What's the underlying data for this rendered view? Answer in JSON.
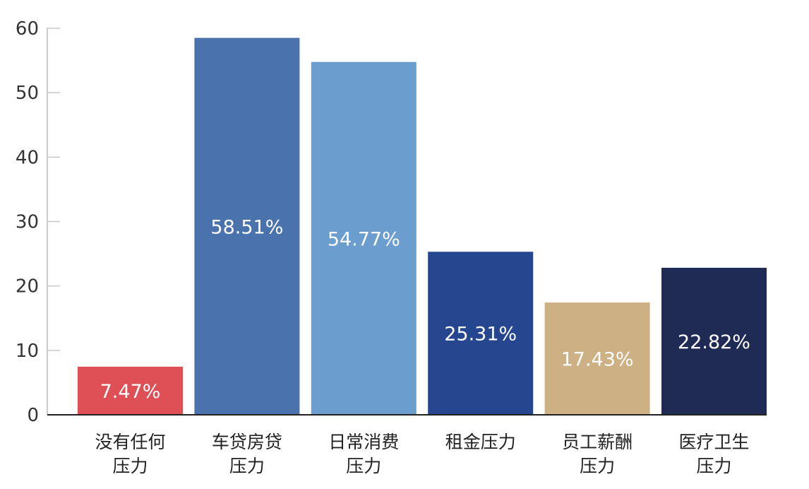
{
  "chart_data": {
    "type": "bar",
    "categories": [
      [
        "没有任何",
        "压力"
      ],
      [
        "车贷房贷",
        "压力"
      ],
      [
        "日常消费",
        "压力"
      ],
      [
        "租金压力"
      ],
      [
        "员工薪酬",
        "压力"
      ],
      [
        "医疗卫生",
        "压力"
      ]
    ],
    "values": [
      7.47,
      58.51,
      54.77,
      25.31,
      17.43,
      22.82
    ],
    "value_labels": [
      "7.47%",
      "58.51%",
      "54.77%",
      "25.31%",
      "17.43%",
      "22.82%"
    ],
    "colors": [
      "#DE4F56",
      "#4A72AD",
      "#6B9ECE",
      "#26468F",
      "#CDB083",
      "#1F2B55"
    ],
    "ylim": [
      0,
      60
    ],
    "yticks": [
      0,
      10,
      20,
      30,
      40,
      50,
      60
    ],
    "title": "",
    "xlabel": "",
    "ylabel": "",
    "grid": false,
    "legend": "none"
  }
}
